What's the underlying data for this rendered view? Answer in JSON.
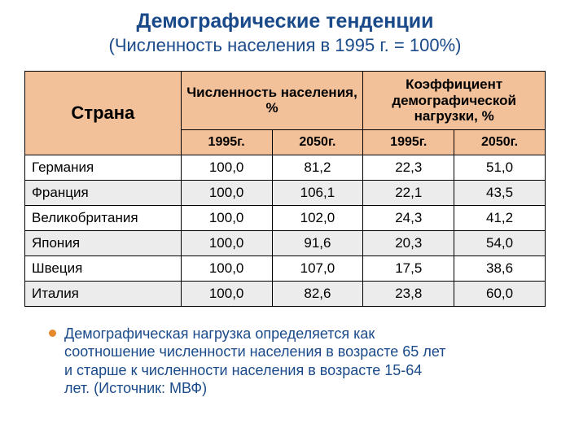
{
  "colors": {
    "title": "#1a4a8a",
    "subtitle": "#1a4a8a",
    "header_bg": "#f2c19a",
    "alt_row_bg": "#ececec",
    "bullet": "#e68a2e",
    "footnote": "#1a4a8a",
    "border": "#000000",
    "background": "#ffffff"
  },
  "title": "Демографические тенденции",
  "subtitle": "(Численность населения в 1995 г. = 100%)",
  "table": {
    "country_header": "Страна",
    "group1_header": "Численность населения, %",
    "group2_header": "Коэффициент демографической нагрузки, %",
    "year_headers": [
      "1995г.",
      "2050г.",
      "1995г.",
      "2050г."
    ],
    "col_widths_percent": [
      30,
      17.5,
      17.5,
      17.5,
      17.5
    ],
    "rows": [
      {
        "country": "Германия",
        "v": [
          "100,0",
          "81,2",
          "22,3",
          "51,0"
        ],
        "alt": false
      },
      {
        "country": "Франция",
        "v": [
          "100,0",
          "106,1",
          "22,1",
          "43,5"
        ],
        "alt": true
      },
      {
        "country": "Великобритания",
        "v": [
          "100,0",
          "102,0",
          "24,3",
          "41,2"
        ],
        "alt": false
      },
      {
        "country": "Япония",
        "v": [
          "100,0",
          "91,6",
          "20,3",
          "54,0"
        ],
        "alt": true
      },
      {
        "country": "Швеция",
        "v": [
          "100,0",
          "107,0",
          "17,5",
          "38,6"
        ],
        "alt": false
      },
      {
        "country": "Италия",
        "v": [
          "100,0",
          "82,6",
          "23,8",
          "60,0"
        ],
        "alt": true
      }
    ]
  },
  "footnote": "Демографическая нагрузка определяется как соотношение численности населения в возрасте 65 лет и старше к численности населения в возрасте 15-64 лет. (Источник: МВФ)"
}
